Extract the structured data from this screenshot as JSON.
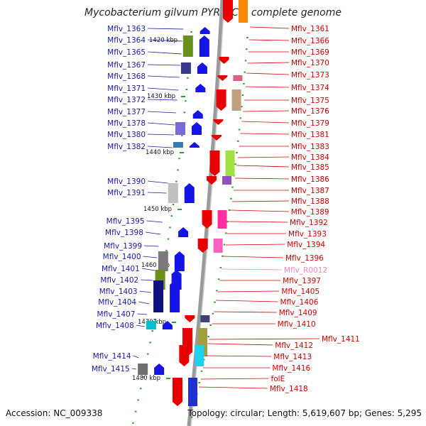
{
  "title": "Mycobacterium gilvum PYR-GCK, complete genome",
  "accession": "Accession: NC_009338",
  "summary": "Topology: circular; Length: 5,619,607 bp; Genes: 5,295",
  "colors": {
    "left_label": "#1a1aa8",
    "right_label": "#d40000",
    "pink_label": "#f08cb4",
    "forward_arrow": "#1414e6",
    "reverse_arrow": "#e60000",
    "backbone": "#999999",
    "tick": "#2e9e2e"
  },
  "kbp_marks": [
    "1420 kbp",
    "1430 kbp",
    "1440 kbp",
    "1450 kbp",
    "1460 kbp",
    "1470 kbp",
    "1480 kbp"
  ],
  "left_labels": [
    "Mflv_1363",
    "Mflv_1364",
    "Mflv_1365",
    "Mflv_1367",
    "Mflv_1368",
    "Mflv_1371",
    "Mflv_1372",
    "Mflv_1377",
    "Mflv_1378",
    "Mflv_1380",
    "Mflv_1382",
    "Mflv_1390",
    "Mflv_1391",
    "Mflv_1395",
    "Mflv_1398",
    "Mflv_1399",
    "Mflv_1400",
    "Mflv_1401",
    "Mflv_1402",
    "Mflv_1403",
    "Mflv_1404",
    "Mflv_1407",
    "Mflv_1408",
    "Mflv_1414",
    "Mflv_1415"
  ],
  "right_labels": [
    "Mflv_1361",
    "Mflv_1366",
    "Mflv_1369",
    "Mflv_1370",
    "Mflv_1373",
    "Mflv_1374",
    "Mflv_1375",
    "Mflv_1376",
    "Mflv_1379",
    "Mflv_1381",
    "Mflv_1383",
    "Mflv_1384",
    "Mflv_1385",
    "Mflv_1386",
    "Mflv_1387",
    "Mflv_1388",
    "Mflv_1389",
    "Mflv_1392",
    "Mflv_1393",
    "Mflv_1394",
    "Mflv_1396",
    "Mflv_R0012",
    "Mflv_1397",
    "Mflv_1405",
    "Mflv_1406",
    "Mflv_1409",
    "Mflv_1410",
    "Mflv_1411",
    "Mflv_1412",
    "Mflv_1413",
    "Mflv_1416",
    "folE",
    "Mflv_1418"
  ]
}
